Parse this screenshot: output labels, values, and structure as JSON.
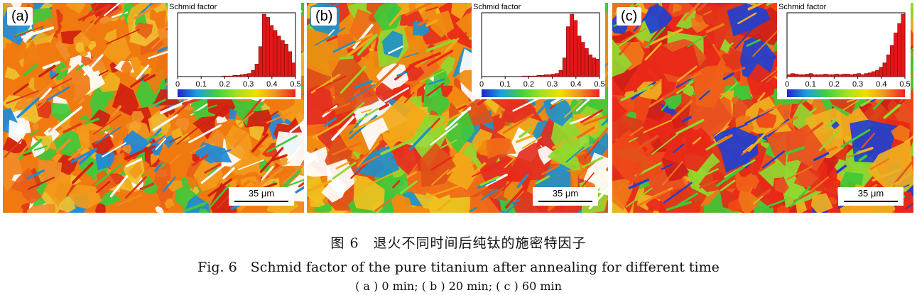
{
  "panels": [
    {
      "tag": "(a)",
      "inset_title": "Schmid factor",
      "ticks": [
        "0",
        "0.1",
        "0.2",
        "0.3",
        "0.4",
        "0.5"
      ],
      "scale": "35 μm",
      "histogram": [
        0,
        0,
        0,
        0,
        0,
        0,
        0,
        0,
        0,
        0,
        0,
        0,
        1,
        1,
        1,
        2,
        2,
        3,
        4,
        5,
        10,
        20,
        48,
        100,
        95,
        82,
        74,
        65,
        58,
        52,
        40,
        22
      ]
    },
    {
      "tag": "(b)",
      "inset_title": "Schmid factor",
      "ticks": [
        "0",
        "0.1",
        "0.2",
        "0.3",
        "0.4",
        "0.5"
      ],
      "scale": "35 μm",
      "histogram": [
        0,
        0,
        0,
        0,
        0,
        0,
        0,
        0,
        0,
        0,
        0,
        1,
        1,
        1,
        1,
        2,
        2,
        3,
        3,
        4,
        5,
        10,
        30,
        80,
        100,
        90,
        65,
        55,
        45,
        35,
        30,
        28
      ]
    },
    {
      "tag": "(c)",
      "inset_title": "Schmid factor",
      "ticks": [
        "0",
        "0.1",
        "0.2",
        "0.3",
        "0.4",
        "0.5"
      ],
      "scale": "35 μm",
      "histogram": [
        3,
        5,
        4,
        3,
        3,
        4,
        5,
        3,
        3,
        3,
        4,
        3,
        3,
        4,
        3,
        4,
        4,
        3,
        4,
        5,
        3,
        5,
        6,
        8,
        10,
        15,
        22,
        35,
        50,
        70,
        85,
        100
      ]
    }
  ],
  "colorbar": [
    "#2020d0",
    "#1aa0e0",
    "#40d040",
    "#a0e020",
    "#f0e000",
    "#f09020",
    "#f02020"
  ],
  "caption": {
    "cn": "图 6　退火不同时间后纯钛的施密特因子",
    "en": "Fig. 6　Schmid factor of the pure titanium after annealing for different time",
    "sub": "( a ) 0 min; ( b ) 20 min; ( c ) 60 min"
  }
}
